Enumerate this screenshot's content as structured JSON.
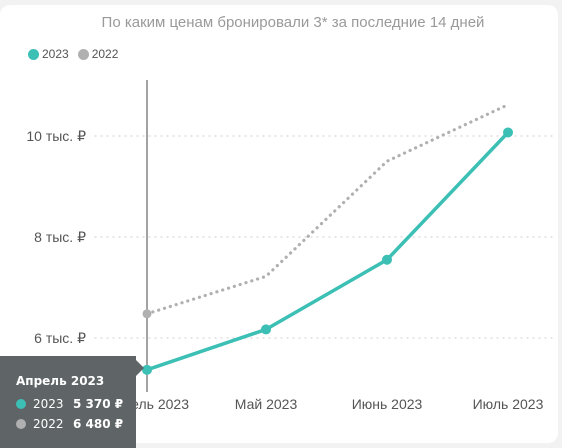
{
  "chart_data": {
    "type": "line",
    "title": "По каким ценам бронировали 3* за последние 14 дней",
    "categories": [
      "Апрель 2023",
      "Май 2023",
      "Июнь 2023",
      "Июль 2023"
    ],
    "category_labels_shown": [
      "ель 2023",
      "Май 2023",
      "Июнь 2023",
      "Июль 2023"
    ],
    "series": [
      {
        "name": "2023",
        "color": "#3cbfb4",
        "style": "solid",
        "markers": true,
        "values": [
          5370,
          6170,
          7550,
          10070
        ]
      },
      {
        "name": "2022",
        "color": "#b0b0b0",
        "style": "dotted",
        "markers": false,
        "values": [
          6480,
          7220,
          9500,
          10620
        ]
      }
    ],
    "y_ticks": [
      {
        "value": 6000,
        "label": "6 тыс. ₽"
      },
      {
        "value": 8000,
        "label": "8 тыс. ₽"
      },
      {
        "value": 10000,
        "label": "10 тыс. ₽"
      }
    ],
    "ylim": [
      5000,
      11000
    ],
    "xlabel": "",
    "ylabel": "",
    "grid": "horizontal-dotted",
    "legend": "top-left",
    "hover_category_index": 0
  },
  "legend": {
    "items": [
      {
        "label": "2023",
        "color": "#3cbfb4"
      },
      {
        "label": "2022",
        "color": "#b0b0b0"
      }
    ]
  },
  "tooltip": {
    "title": "Апрель 2023",
    "rows": [
      {
        "series": "2023",
        "value": "5 370 ₽",
        "color": "#3cbfb4"
      },
      {
        "series": "2022",
        "value": "6 480 ₽",
        "color": "#b0b0b0"
      }
    ]
  }
}
